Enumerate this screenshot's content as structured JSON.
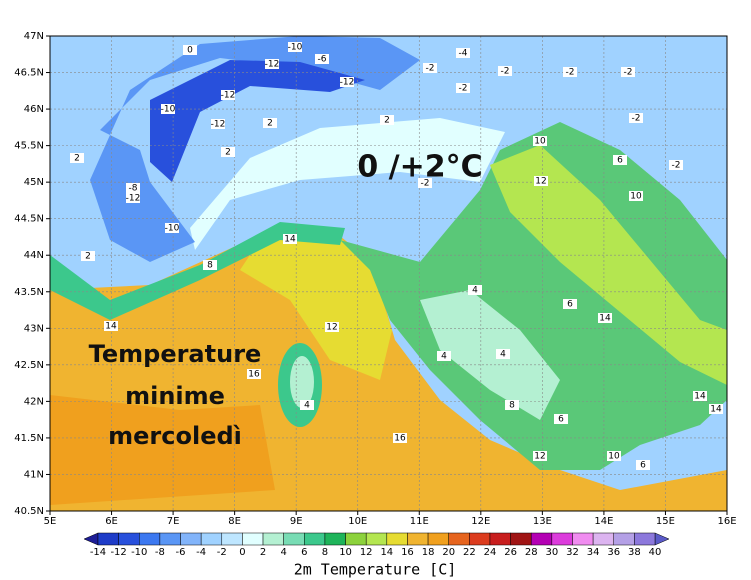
{
  "map": {
    "title": "2m Temperature [C]",
    "annotations": [
      "0 /+2°C",
      "Temperature",
      "minime",
      "mercoledì"
    ],
    "xlim": [
      5,
      16
    ],
    "xticks": [
      {
        "value": 5,
        "label": "5E"
      },
      {
        "value": 6,
        "label": "6E"
      },
      {
        "value": 7,
        "label": "7E"
      },
      {
        "value": 8,
        "label": "8E"
      },
      {
        "value": 9,
        "label": "9E"
      },
      {
        "value": 10,
        "label": "10E"
      },
      {
        "value": 11,
        "label": "11E"
      },
      {
        "value": 12,
        "label": "12E"
      },
      {
        "value": 13,
        "label": "13E"
      },
      {
        "value": 14,
        "label": "14E"
      },
      {
        "value": 15,
        "label": "15E"
      },
      {
        "value": 16,
        "label": "16E"
      }
    ],
    "ylim": [
      40.5,
      47
    ],
    "yticks": [
      {
        "value": 40.5,
        "label": "40.5N"
      },
      {
        "value": 41,
        "label": "41N"
      },
      {
        "value": 41.5,
        "label": "41.5N"
      },
      {
        "value": 42,
        "label": "42N"
      },
      {
        "value": 42.5,
        "label": "42.5N"
      },
      {
        "value": 43,
        "label": "43N"
      },
      {
        "value": 43.5,
        "label": "43.5N"
      },
      {
        "value": 44,
        "label": "44N"
      },
      {
        "value": 44.5,
        "label": "44.5N"
      },
      {
        "value": 45,
        "label": "45N"
      },
      {
        "value": 45.5,
        "label": "45.5N"
      },
      {
        "value": 46,
        "label": "46N"
      },
      {
        "value": 46.5,
        "label": "46.5N"
      },
      {
        "value": 47,
        "label": "47N"
      }
    ],
    "colorbar_levels": [
      -14,
      -12,
      -10,
      -8,
      -6,
      -4,
      -2,
      0,
      2,
      4,
      6,
      8,
      10,
      12,
      14,
      16,
      18,
      20,
      22,
      24,
      26,
      28,
      30,
      32,
      34,
      36,
      38,
      40
    ],
    "colorbar_colors": [
      "#1e1e96",
      "#1e3cc8",
      "#2850dc",
      "#3c78f0",
      "#5a96f5",
      "#82b4fa",
      "#a0d2ff",
      "#bee6ff",
      "#e1ffff",
      "#b4f0d2",
      "#78dcb4",
      "#3cc88c",
      "#1eb45a",
      "#8cd23c",
      "#b4e650",
      "#e6dc32",
      "#f0b430",
      "#f0a01e",
      "#e6641e",
      "#dc3c1e",
      "#c81e1e",
      "#a01414",
      "#b400b4",
      "#dc3cdc",
      "#f08cf0",
      "#dcb4f0",
      "#b4a0e6",
      "#8c78dc",
      "#5a5ac8"
    ],
    "contour_labels": [
      0,
      -10,
      -6,
      -12,
      -12,
      -12,
      -10,
      -12,
      -8,
      -12,
      -10,
      2,
      2,
      2,
      2,
      2,
      -2,
      -2,
      -2,
      -2,
      -2,
      -2,
      -2,
      -4,
      10,
      12,
      6,
      10,
      8,
      14,
      14,
      16,
      4,
      16,
      4,
      4,
      6,
      14,
      14,
      14,
      8,
      6,
      10,
      6,
      12,
      12,
      4,
      -2
    ]
  }
}
